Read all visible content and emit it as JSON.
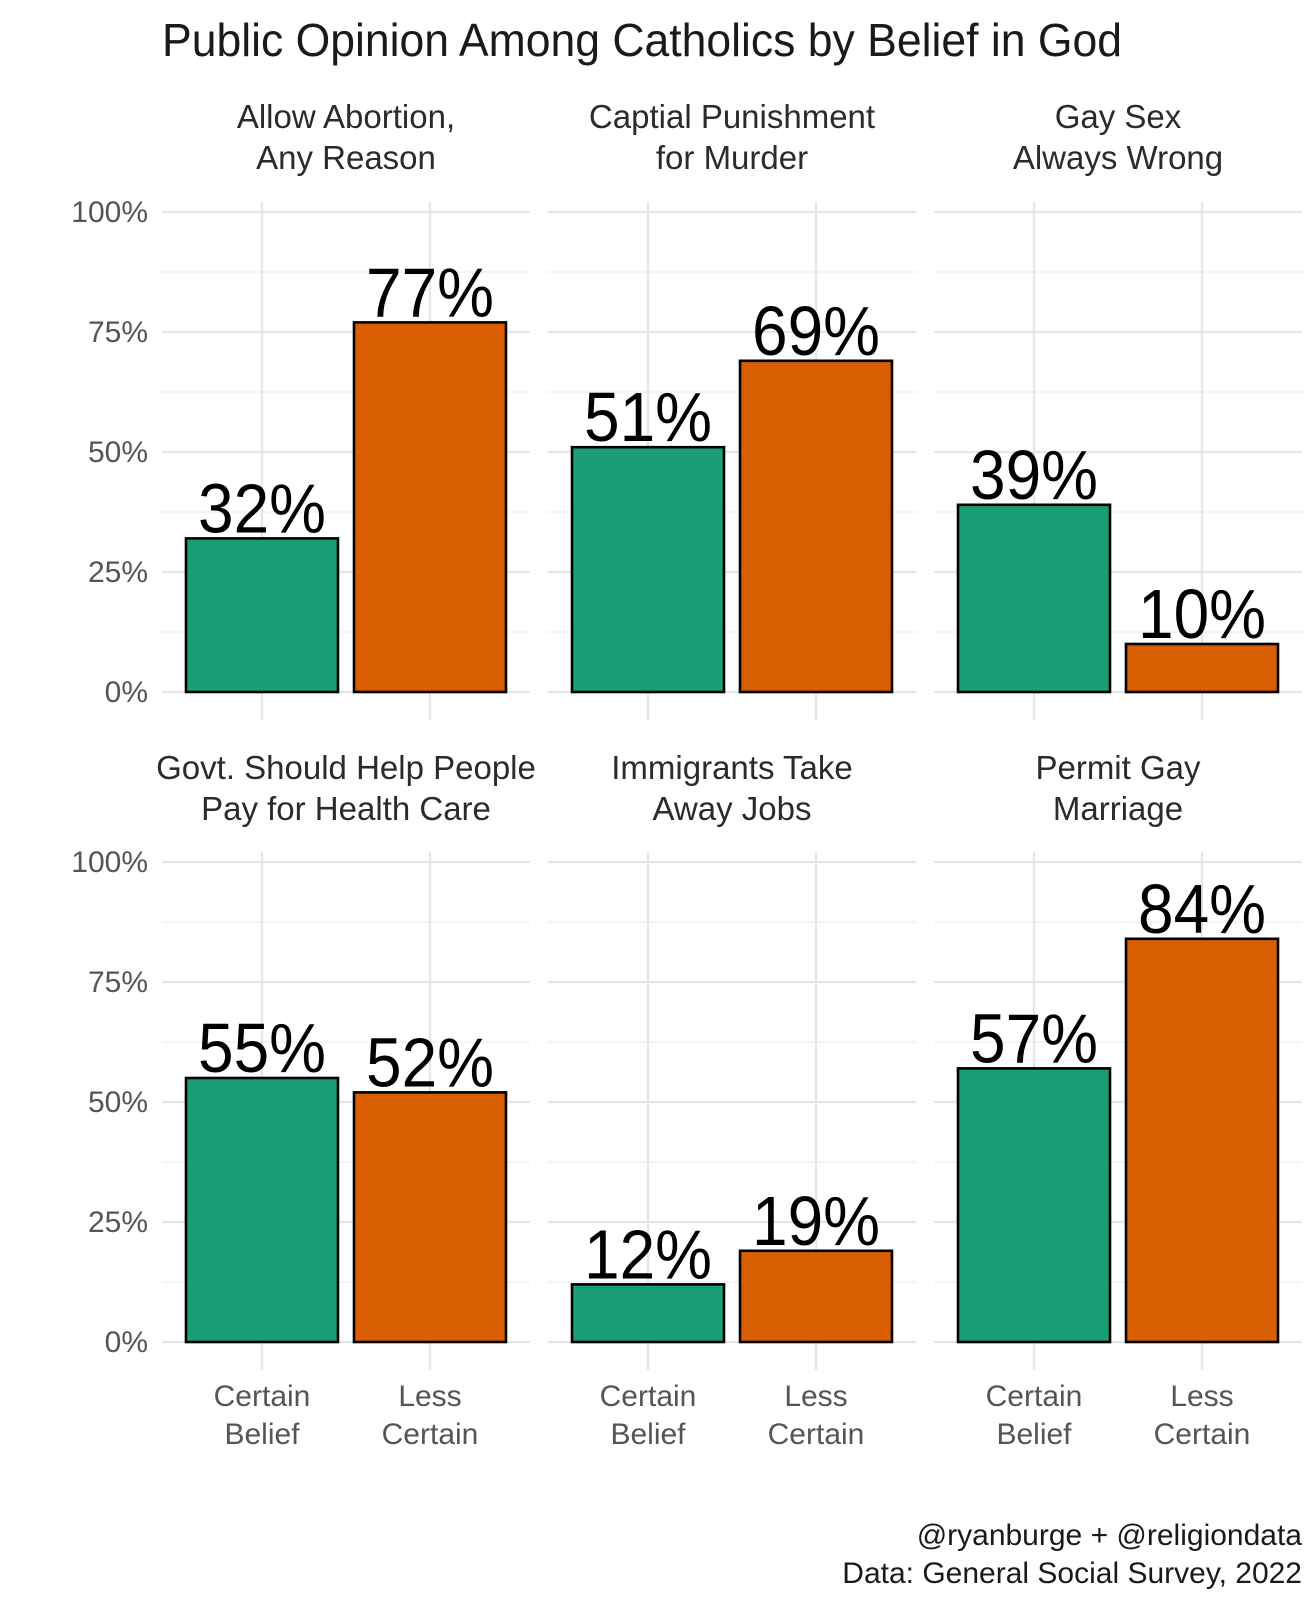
{
  "chart_data": {
    "type": "bar",
    "title": "Public Opinion Among Catholics by Belief in God",
    "categories": [
      "Certain\nBelief",
      "Less\nCertain"
    ],
    "colors": {
      "Certain Belief": "#1b9e77",
      "Less Certain": "#d95f02"
    },
    "ylim": [
      0,
      100
    ],
    "y_ticks": [
      "0%",
      "25%",
      "50%",
      "75%",
      "100%"
    ],
    "y_tick_values": [
      0,
      25,
      50,
      75,
      100
    ],
    "panels": [
      {
        "title": "Allow Abortion,\nAny Reason",
        "values": [
          32,
          77
        ],
        "labels": [
          "32%",
          "77%"
        ]
      },
      {
        "title": "Captial Punishment\nfor Murder",
        "values": [
          51,
          69
        ],
        "labels": [
          "51%",
          "69%"
        ]
      },
      {
        "title": "Gay Sex\nAlways Wrong",
        "values": [
          39,
          10
        ],
        "labels": [
          "39%",
          "10%"
        ]
      },
      {
        "title": "Govt. Should Help People\nPay for Health Care",
        "values": [
          55,
          52
        ],
        "labels": [
          "55%",
          "52%"
        ]
      },
      {
        "title": "Immigrants Take\nAway Jobs",
        "values": [
          12,
          19
        ],
        "labels": [
          "12%",
          "19%"
        ]
      },
      {
        "title": "Permit Gay\nMarriage",
        "values": [
          57,
          84
        ],
        "labels": [
          "57%",
          "84%"
        ]
      }
    ],
    "caption": [
      "@ryanburge + @religiondata",
      "Data: General Social Survey, 2022"
    ]
  }
}
